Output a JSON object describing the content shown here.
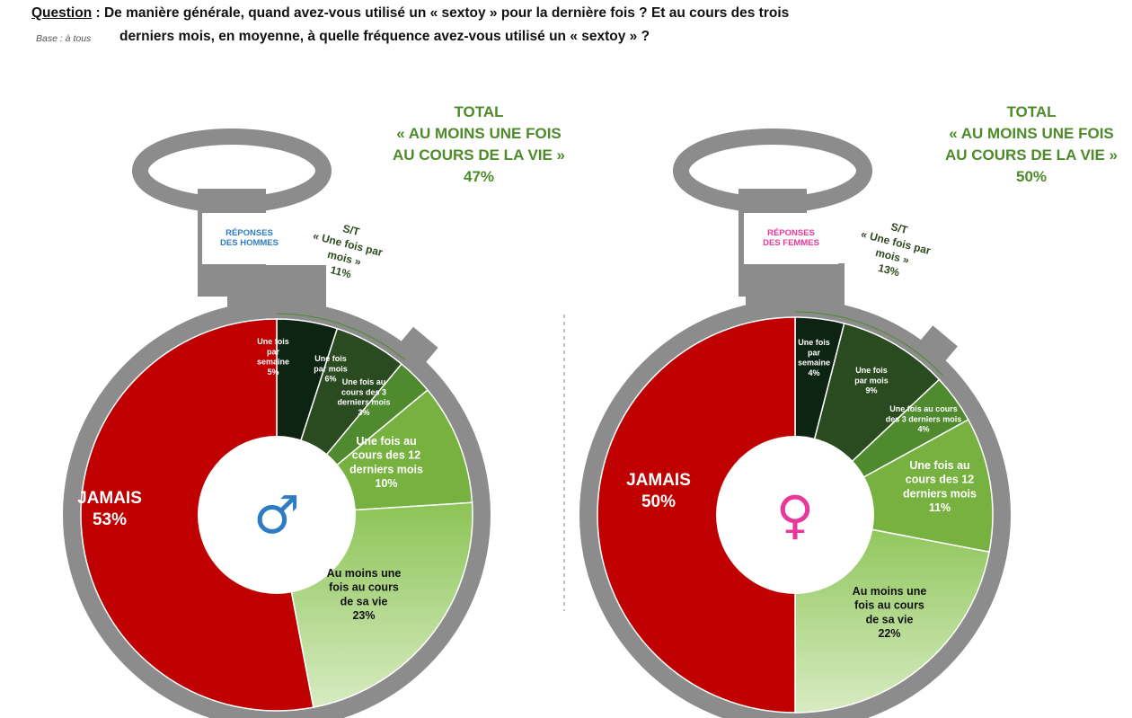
{
  "question": {
    "label": "Question",
    "separator": " : ",
    "line1": "De manière générale, quand avez-vous utilisé un « sextoy » pour la dernière fois ? Et au cours des trois",
    "line2": "derniers mois, en moyenne, à quelle fréquence avez-vous utilisé un « sextoy » ?",
    "base": "Base : à tous"
  },
  "colors": {
    "jamais": "#c00000",
    "semaine": "#0e2412",
    "mois": "#2a4a20",
    "trois_mois": "#4f8a2e",
    "douze_mois": "#77b240",
    "vie_top": "#8cc456",
    "vie_bottom": "#d7ebc2",
    "total_text": "#4d8a2a",
    "watch": "#8c8c8c",
    "male_accent": "#2e7dc4",
    "female_accent": "#e8399a"
  },
  "chart_data": [
    {
      "type": "pie",
      "group": "men",
      "badge": [
        "RÉPONSES",
        "DES HOMMES"
      ],
      "symbol": "♂",
      "total": {
        "lines": [
          "TOTAL",
          "« AU MOINS UNE FOIS",
          "AU COURS DE LA VIE »"
        ],
        "value": "47%"
      },
      "subtotal": {
        "lines": [
          "S/T",
          "« Une fois par",
          "mois »"
        ],
        "value": "11%"
      },
      "categories": [
        "Une fois par semaine",
        "Une fois par mois",
        "Une fois au cours des 3 derniers mois",
        "Une fois au cours des 12 derniers mois",
        "Au moins une fois au cours de sa vie",
        "JAMAIS"
      ],
      "values": [
        5,
        6,
        3,
        10,
        23,
        53
      ],
      "labels": [
        {
          "lines": [
            "Une fois",
            "par",
            "semaine"
          ],
          "value": "5%"
        },
        {
          "lines": [
            "Une fois",
            "par mois"
          ],
          "value": "6%"
        },
        {
          "lines": [
            "Une fois au",
            "cours des 3",
            "derniers mois"
          ],
          "value": "3%"
        },
        {
          "lines": [
            "Une fois au",
            "cours des 12",
            "derniers mois"
          ],
          "value": "10%"
        },
        {
          "lines": [
            "Au moins une",
            "fois au cours",
            "de sa vie"
          ],
          "value": "23%"
        },
        {
          "lines": [
            "JAMAIS"
          ],
          "value": "53%"
        }
      ]
    },
    {
      "type": "pie",
      "group": "women",
      "badge": [
        "RÉPONSES",
        "DES FEMMES"
      ],
      "symbol": "♀",
      "total": {
        "lines": [
          "TOTAL",
          "« AU MOINS UNE FOIS",
          "AU COURS DE LA VIE »"
        ],
        "value": "50%"
      },
      "subtotal": {
        "lines": [
          "S/T",
          "« Une fois  par",
          "mois »"
        ],
        "value": "13%"
      },
      "categories": [
        "Une fois par semaine",
        "Une fois par mois",
        "Une fois au cours des 3 derniers mois",
        "Une fois au cours des 12 derniers mois",
        "Au moins une fois au cours de sa vie",
        "JAMAIS"
      ],
      "values": [
        4,
        9,
        4,
        11,
        22,
        50
      ],
      "labels": [
        {
          "lines": [
            "Une fois",
            "par",
            "semaine"
          ],
          "value": "4%"
        },
        {
          "lines": [
            "Une fois",
            "par mois"
          ],
          "value": "9%"
        },
        {
          "lines": [
            "Une fois au cours",
            "des 3 derniers mois"
          ],
          "value": "4%"
        },
        {
          "lines": [
            "Une fois au",
            "cours des 12",
            "derniers mois"
          ],
          "value": "11%"
        },
        {
          "lines": [
            "Au moins une",
            "fois au cours",
            "de sa vie"
          ],
          "value": "22%"
        },
        {
          "lines": [
            "JAMAIS"
          ],
          "value": "50%"
        }
      ]
    }
  ]
}
